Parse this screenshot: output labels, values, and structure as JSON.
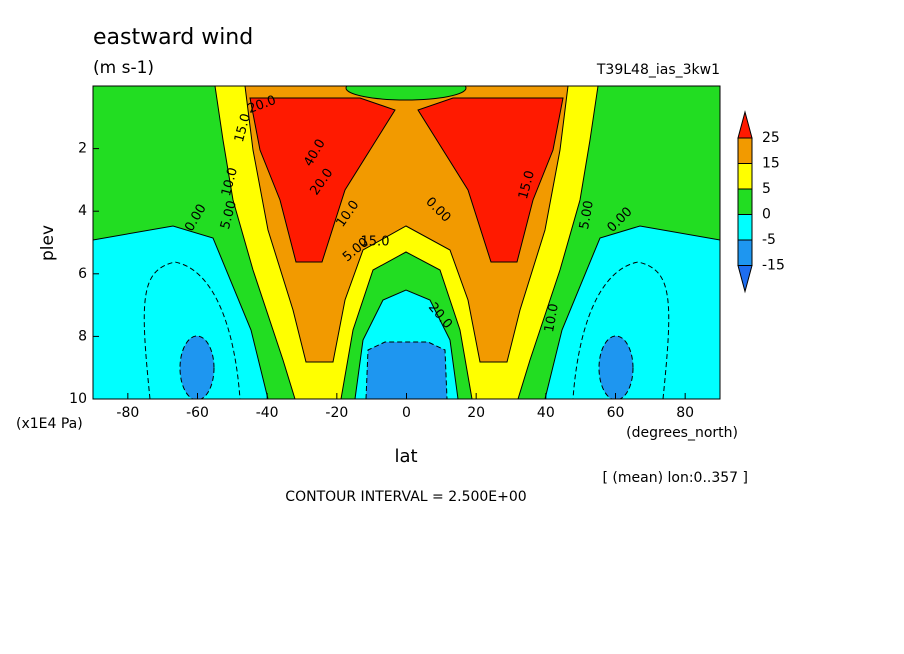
{
  "chart_data": {
    "type": "contour",
    "title": "eastward wind",
    "units": "(m s-1)",
    "dataset": "T39L48_ias_3kw1",
    "xlabel": "lat",
    "ylabel": "plev",
    "x_units": "(degrees_north)",
    "y_units": "(x1E4 Pa)",
    "note": "[ (mean) lon:0..357 ]",
    "contour_interval": "CONTOUR INTERVAL = 2.500E+00",
    "xlim": [
      -90,
      90
    ],
    "xticks": [
      -80,
      -60,
      -40,
      -20,
      0,
      20,
      40,
      60,
      80
    ],
    "ylim": [
      0,
      10
    ],
    "yticks": [
      2,
      4,
      6,
      8,
      10
    ],
    "levels": [
      25,
      15,
      5,
      0,
      -5,
      -15
    ],
    "colors": [
      "#ff1a00",
      "#f29a00",
      "#ffff00",
      "#22dd22",
      "#00ffff",
      "#1e96f0",
      "#1e6ef0"
    ],
    "contour_labels": [
      {
        "value": 20,
        "label": "20.0"
      },
      {
        "value": 15,
        "label": "15.0"
      },
      {
        "value": 10,
        "label": "10.0"
      },
      {
        "value": 5,
        "label": "5.00"
      },
      {
        "value": 0,
        "label": "0.00"
      },
      {
        "value": 40,
        "label": "40.0"
      },
      {
        "value": 20,
        "label": "20.0"
      },
      {
        "value": 10,
        "label": "10.0"
      },
      {
        "value": 5,
        "label": "5.00"
      },
      {
        "value": 15,
        "label": "15.0"
      },
      {
        "value": 0,
        "label": "0.00"
      },
      {
        "value": 20,
        "label": "20.0"
      },
      {
        "value": 15,
        "label": "15.0"
      },
      {
        "value": 5,
        "label": "5.00"
      },
      {
        "value": 0,
        "label": "0.00"
      },
      {
        "value": 10,
        "label": "10.0"
      }
    ]
  }
}
